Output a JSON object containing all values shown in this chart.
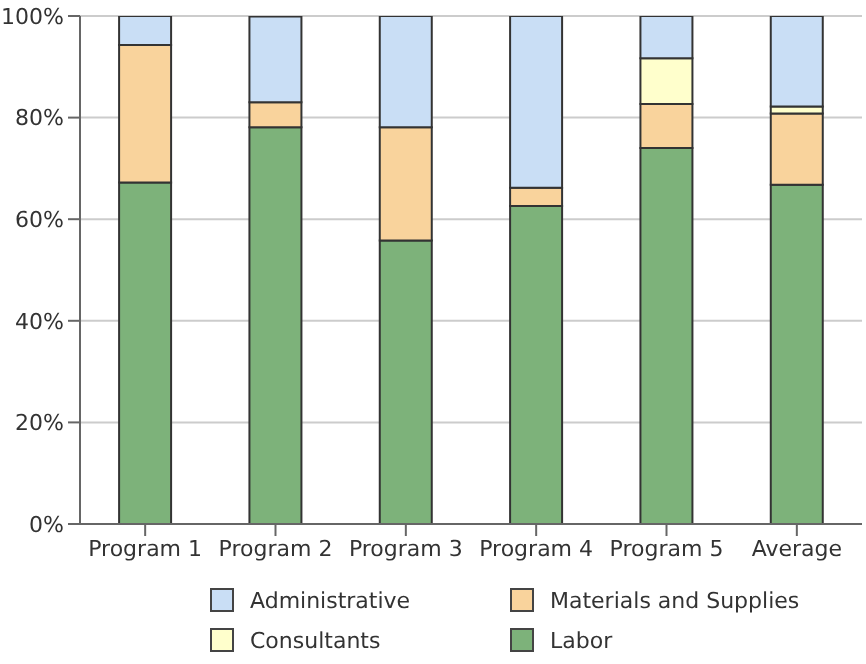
{
  "chart_data": {
    "type": "bar",
    "stacked": true,
    "categories": [
      "Program 1",
      "Program 2",
      "Program 3",
      "Program 4",
      "Program 5",
      "Average"
    ],
    "series": [
      {
        "name": "Labor",
        "color": "#7db27a",
        "values": [
          67.2,
          78.1,
          55.8,
          62.6,
          74.0,
          66.8
        ]
      },
      {
        "name": "Materials and Supplies",
        "color": "#f9d39c",
        "values": [
          27.1,
          4.9,
          22.3,
          3.6,
          8.7,
          14.0
        ]
      },
      {
        "name": "Consultants",
        "color": "#ffffcc",
        "values": [
          0,
          0,
          0,
          0,
          9.0,
          1.4
        ]
      },
      {
        "name": "Administrative",
        "color": "#c9def5",
        "values": [
          5.7,
          16.9,
          21.9,
          33.8,
          8.3,
          17.8
        ]
      }
    ],
    "ylim": [
      0,
      100
    ],
    "yticks": [
      {
        "value": 0,
        "label": "0%"
      },
      {
        "value": 20,
        "label": "20%"
      },
      {
        "value": 40,
        "label": "40%"
      },
      {
        "value": 60,
        "label": "60%"
      },
      {
        "value": 80,
        "label": "80%"
      },
      {
        "value": 100,
        "label": "100%"
      }
    ],
    "grid": "y",
    "legend": "bottom"
  }
}
